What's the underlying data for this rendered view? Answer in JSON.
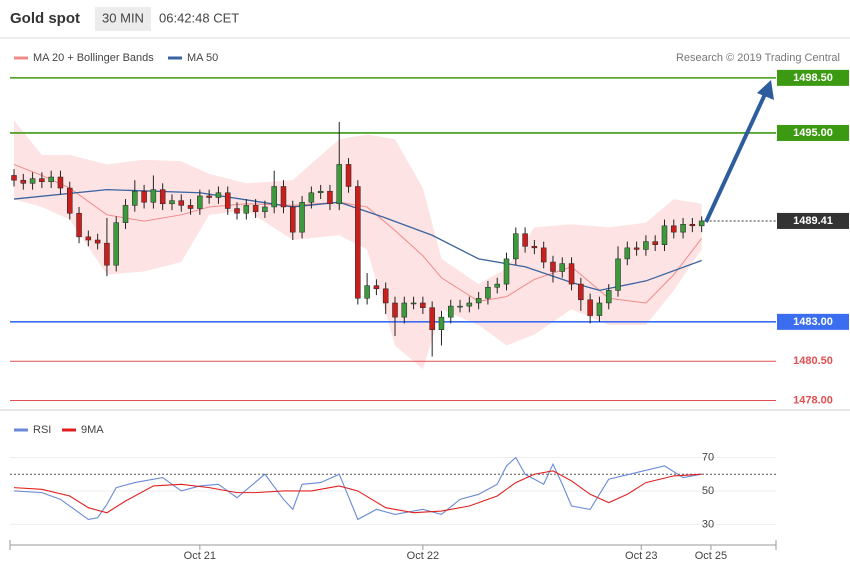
{
  "header": {
    "title": "Gold spot",
    "interval": "30 MIN",
    "time": "06:42:48 CET"
  },
  "chart_data": [
    {
      "type": "candlestick",
      "source": "Research © 2019 Trading Central",
      "x": [
        0,
        1,
        2,
        3,
        4,
        5,
        6,
        7,
        8,
        9,
        10,
        11,
        12,
        13,
        14,
        15,
        16,
        17,
        18,
        19,
        20,
        21,
        22,
        23,
        24,
        25,
        26,
        27,
        28,
        29,
        30,
        31,
        32,
        33,
        34,
        35,
        36,
        37,
        38,
        39,
        40,
        41,
        42,
        43,
        44,
        45,
        46,
        47,
        48,
        49,
        50,
        51,
        52,
        53,
        54,
        55,
        56,
        57,
        58,
        59,
        60,
        61,
        62,
        63,
        64,
        65,
        66,
        67,
        68,
        69,
        70,
        71,
        72,
        73,
        74
      ],
      "open": [
        1492.3,
        1492.0,
        1491.8,
        1492.1,
        1491.9,
        1492.2,
        1491.5,
        1489.9,
        1488.4,
        1488.2,
        1488.0,
        1486.6,
        1489.3,
        1490.4,
        1491.3,
        1490.6,
        1491.4,
        1490.5,
        1490.7,
        1490.4,
        1490.2,
        1491.0,
        1490.9,
        1491.2,
        1490.2,
        1489.9,
        1490.4,
        1490.0,
        1490.3,
        1491.6,
        1490.3,
        1488.7,
        1490.6,
        1491.2,
        1491.3,
        1490.5,
        1493.0,
        1491.6,
        1484.5,
        1485.3,
        1485.1,
        1484.2,
        1483.3,
        1484.2,
        1484.2,
        1483.9,
        1482.5,
        1483.3,
        1484.0,
        1484.0,
        1484.2,
        1484.5,
        1485.2,
        1485.4,
        1487.0,
        1488.6,
        1487.8,
        1487.7,
        1486.8,
        1486.2,
        1486.7,
        1485.4,
        1484.4,
        1483.4,
        1484.2,
        1485.0,
        1487.0,
        1487.7,
        1487.6,
        1488.1,
        1487.9,
        1489.1,
        1488.7,
        1489.2,
        1489.1
      ],
      "high": [
        1492.7,
        1492.4,
        1492.5,
        1492.5,
        1492.6,
        1492.6,
        1491.9,
        1490.3,
        1488.8,
        1488.6,
        1489.6,
        1489.7,
        1490.8,
        1492.0,
        1491.7,
        1492.3,
        1491.8,
        1491.1,
        1491.1,
        1490.8,
        1491.4,
        1491.4,
        1491.6,
        1491.6,
        1490.6,
        1490.8,
        1490.8,
        1490.7,
        1492.6,
        1492.0,
        1490.7,
        1491.0,
        1491.6,
        1491.7,
        1491.7,
        1495.7,
        1493.4,
        1492.0,
        1486.1,
        1485.7,
        1485.5,
        1484.6,
        1484.6,
        1484.6,
        1484.6,
        1484.3,
        1483.7,
        1484.4,
        1484.4,
        1484.6,
        1484.9,
        1485.6,
        1485.8,
        1487.4,
        1489.0,
        1489.0,
        1488.2,
        1488.1,
        1487.2,
        1487.1,
        1487.1,
        1485.8,
        1484.8,
        1484.6,
        1485.4,
        1487.8,
        1488.1,
        1488.1,
        1488.5,
        1488.5,
        1489.5,
        1489.5,
        1489.6,
        1489.6,
        1489.7
      ],
      "low": [
        1491.6,
        1491.4,
        1491.4,
        1491.5,
        1491.5,
        1491.1,
        1489.5,
        1488.0,
        1487.8,
        1487.6,
        1485.9,
        1486.2,
        1488.9,
        1490.0,
        1490.2,
        1490.2,
        1490.1,
        1490.1,
        1490.0,
        1489.8,
        1489.8,
        1490.5,
        1490.5,
        1489.8,
        1489.5,
        1489.5,
        1489.6,
        1489.6,
        1489.9,
        1489.9,
        1488.2,
        1488.3,
        1490.2,
        1490.8,
        1490.1,
        1490.1,
        1491.2,
        1484.1,
        1484.1,
        1484.7,
        1483.5,
        1482.1,
        1482.9,
        1483.8,
        1483.5,
        1480.8,
        1481.5,
        1482.9,
        1483.6,
        1483.6,
        1483.8,
        1484.1,
        1484.8,
        1485.0,
        1486.6,
        1487.4,
        1487.3,
        1486.4,
        1485.5,
        1485.8,
        1485.0,
        1483.7,
        1482.9,
        1483.0,
        1483.8,
        1484.6,
        1486.6,
        1487.2,
        1487.2,
        1487.5,
        1487.5,
        1488.3,
        1488.3,
        1488.7,
        1488.7
      ],
      "close": [
        1492.0,
        1491.8,
        1492.1,
        1491.9,
        1492.2,
        1491.5,
        1489.9,
        1488.4,
        1488.2,
        1488.0,
        1486.6,
        1489.3,
        1490.4,
        1491.3,
        1490.6,
        1491.4,
        1490.5,
        1490.7,
        1490.4,
        1490.2,
        1491.0,
        1490.9,
        1491.2,
        1490.2,
        1489.9,
        1490.4,
        1490.0,
        1490.3,
        1491.6,
        1490.3,
        1488.7,
        1490.6,
        1491.2,
        1491.3,
        1490.5,
        1493.0,
        1491.6,
        1484.5,
        1485.3,
        1485.1,
        1484.2,
        1483.3,
        1484.2,
        1484.2,
        1483.9,
        1482.5,
        1483.3,
        1484.0,
        1484.0,
        1484.2,
        1484.5,
        1485.2,
        1485.4,
        1487.0,
        1488.6,
        1487.8,
        1487.7,
        1486.8,
        1486.2,
        1486.7,
        1485.4,
        1484.4,
        1483.4,
        1484.2,
        1485.0,
        1487.0,
        1487.7,
        1487.6,
        1488.1,
        1487.9,
        1489.1,
        1488.7,
        1489.2,
        1489.1,
        1489.41
      ],
      "up_color": "#3c9a3c",
      "down_color": "#c8201e",
      "bands": {
        "name": "MA 20 + Bollinger Bands",
        "color": "#f08a8a",
        "fill": "#fde3e3",
        "x": [
          0,
          3,
          6,
          10,
          14,
          18,
          21,
          25,
          30,
          35,
          38,
          41,
          44,
          46,
          50,
          53,
          56,
          60,
          64,
          68,
          71,
          74
        ],
        "upper": [
          1495.8,
          1493.6,
          1493.6,
          1493.0,
          1493.3,
          1493.2,
          1492.4,
          1491.8,
          1492.0,
          1494.6,
          1494.9,
          1494.6,
          1491.5,
          1487.0,
          1485.4,
          1486.4,
          1489.0,
          1489.2,
          1489.0,
          1489.3,
          1490.8,
          1490.5
        ],
        "lower": [
          1490.8,
          1490.3,
          1489.5,
          1486.0,
          1486.2,
          1486.8,
          1489.8,
          1490.1,
          1488.2,
          1488.5,
          1487.6,
          1481.5,
          1480.0,
          1483.8,
          1482.8,
          1481.5,
          1482.2,
          1483.8,
          1482.8,
          1482.8,
          1485.0,
          1487.6
        ],
        "ma": [
          1493.0,
          1492.3,
          1491.5,
          1489.8,
          1489.4,
          1489.8,
          1490.3,
          1490.5,
          1490.4,
          1490.6,
          1490.3,
          1488.8,
          1487.2,
          1485.8,
          1484.3,
          1484.6,
          1485.7,
          1486.5,
          1484.5,
          1484.2,
          1486.0,
          1488.3
        ]
      },
      "ma50": {
        "name": "MA 50",
        "color": "#3a64a0",
        "x": [
          0,
          10,
          20,
          30,
          35,
          40,
          45,
          50,
          55,
          60,
          63,
          68,
          74
        ],
        "values": [
          1490.8,
          1491.4,
          1491.2,
          1490.3,
          1490.6,
          1489.6,
          1488.5,
          1487.0,
          1486.5,
          1485.5,
          1485.0,
          1485.6,
          1486.9
        ]
      },
      "levels": [
        {
          "value": 1498.5,
          "label": "1498.50",
          "color": "#3c9a12",
          "style": "box"
        },
        {
          "value": 1495.0,
          "label": "1495.00",
          "color": "#3c9a12",
          "style": "box"
        },
        {
          "value": 1489.41,
          "label": "1489.41",
          "color": "#333333",
          "style": "dotted"
        },
        {
          "value": 1483.0,
          "label": "1483.00",
          "color": "#3a6df0",
          "style": "box"
        },
        {
          "value": 1480.5,
          "label": "1480.50",
          "color": "#e05050",
          "style": "text"
        },
        {
          "value": 1478.0,
          "label": "1478.00",
          "color": "#e05050",
          "style": "text"
        }
      ],
      "xlim": [
        -0.43,
        82
      ],
      "ylim": [
        1477.4,
        1499.0
      ]
    },
    {
      "type": "line",
      "series": [
        {
          "name": "RSI",
          "color": "#6a8ad8",
          "x": [
            0,
            3,
            5,
            6,
            8,
            9,
            10,
            11,
            13,
            16,
            18,
            20,
            22,
            24,
            27,
            29,
            30,
            31,
            33,
            35,
            37,
            39,
            41,
            44,
            46,
            48,
            50,
            52,
            53,
            54,
            55,
            57,
            58,
            59,
            60,
            62,
            63,
            64,
            67,
            70,
            72,
            74
          ],
          "values": [
            50,
            49,
            45,
            41,
            33,
            34,
            42,
            52,
            55,
            58,
            50,
            53,
            54,
            46,
            60,
            45,
            39,
            54,
            55,
            60,
            33,
            39,
            36,
            39,
            36,
            45,
            48,
            54,
            65,
            70,
            60,
            54,
            66,
            54,
            41,
            39,
            48,
            57,
            61,
            65,
            58,
            60
          ]
        },
        {
          "name": "9MA",
          "color": "#e02020",
          "x": [
            0,
            3,
            6,
            8,
            10,
            12,
            15,
            18,
            21,
            24,
            26,
            29,
            32,
            35,
            37,
            40,
            43,
            46,
            49,
            52,
            54,
            56,
            58,
            60,
            62,
            64,
            66,
            68,
            71,
            74
          ],
          "values": [
            52,
            51,
            47,
            40,
            37,
            44,
            53,
            54,
            52,
            49,
            49,
            50,
            50,
            53,
            50,
            40,
            37,
            38,
            41,
            47,
            55,
            60,
            62,
            56,
            48,
            43,
            48,
            55,
            59,
            60
          ]
        }
      ],
      "dotted_levels": [
        60
      ],
      "xlim": [
        -0.43,
        82
      ],
      "ylim": [
        20.7,
        92.4
      ],
      "yticks": [
        30,
        50,
        70
      ],
      "xticks": [
        {
          "value": 20,
          "label": "Oct 21"
        },
        {
          "value": 44,
          "label": "Oct 22"
        },
        {
          "value": 67.5,
          "label": "Oct 23"
        },
        {
          "value": 75,
          "label": "Oct 25"
        }
      ]
    }
  ]
}
